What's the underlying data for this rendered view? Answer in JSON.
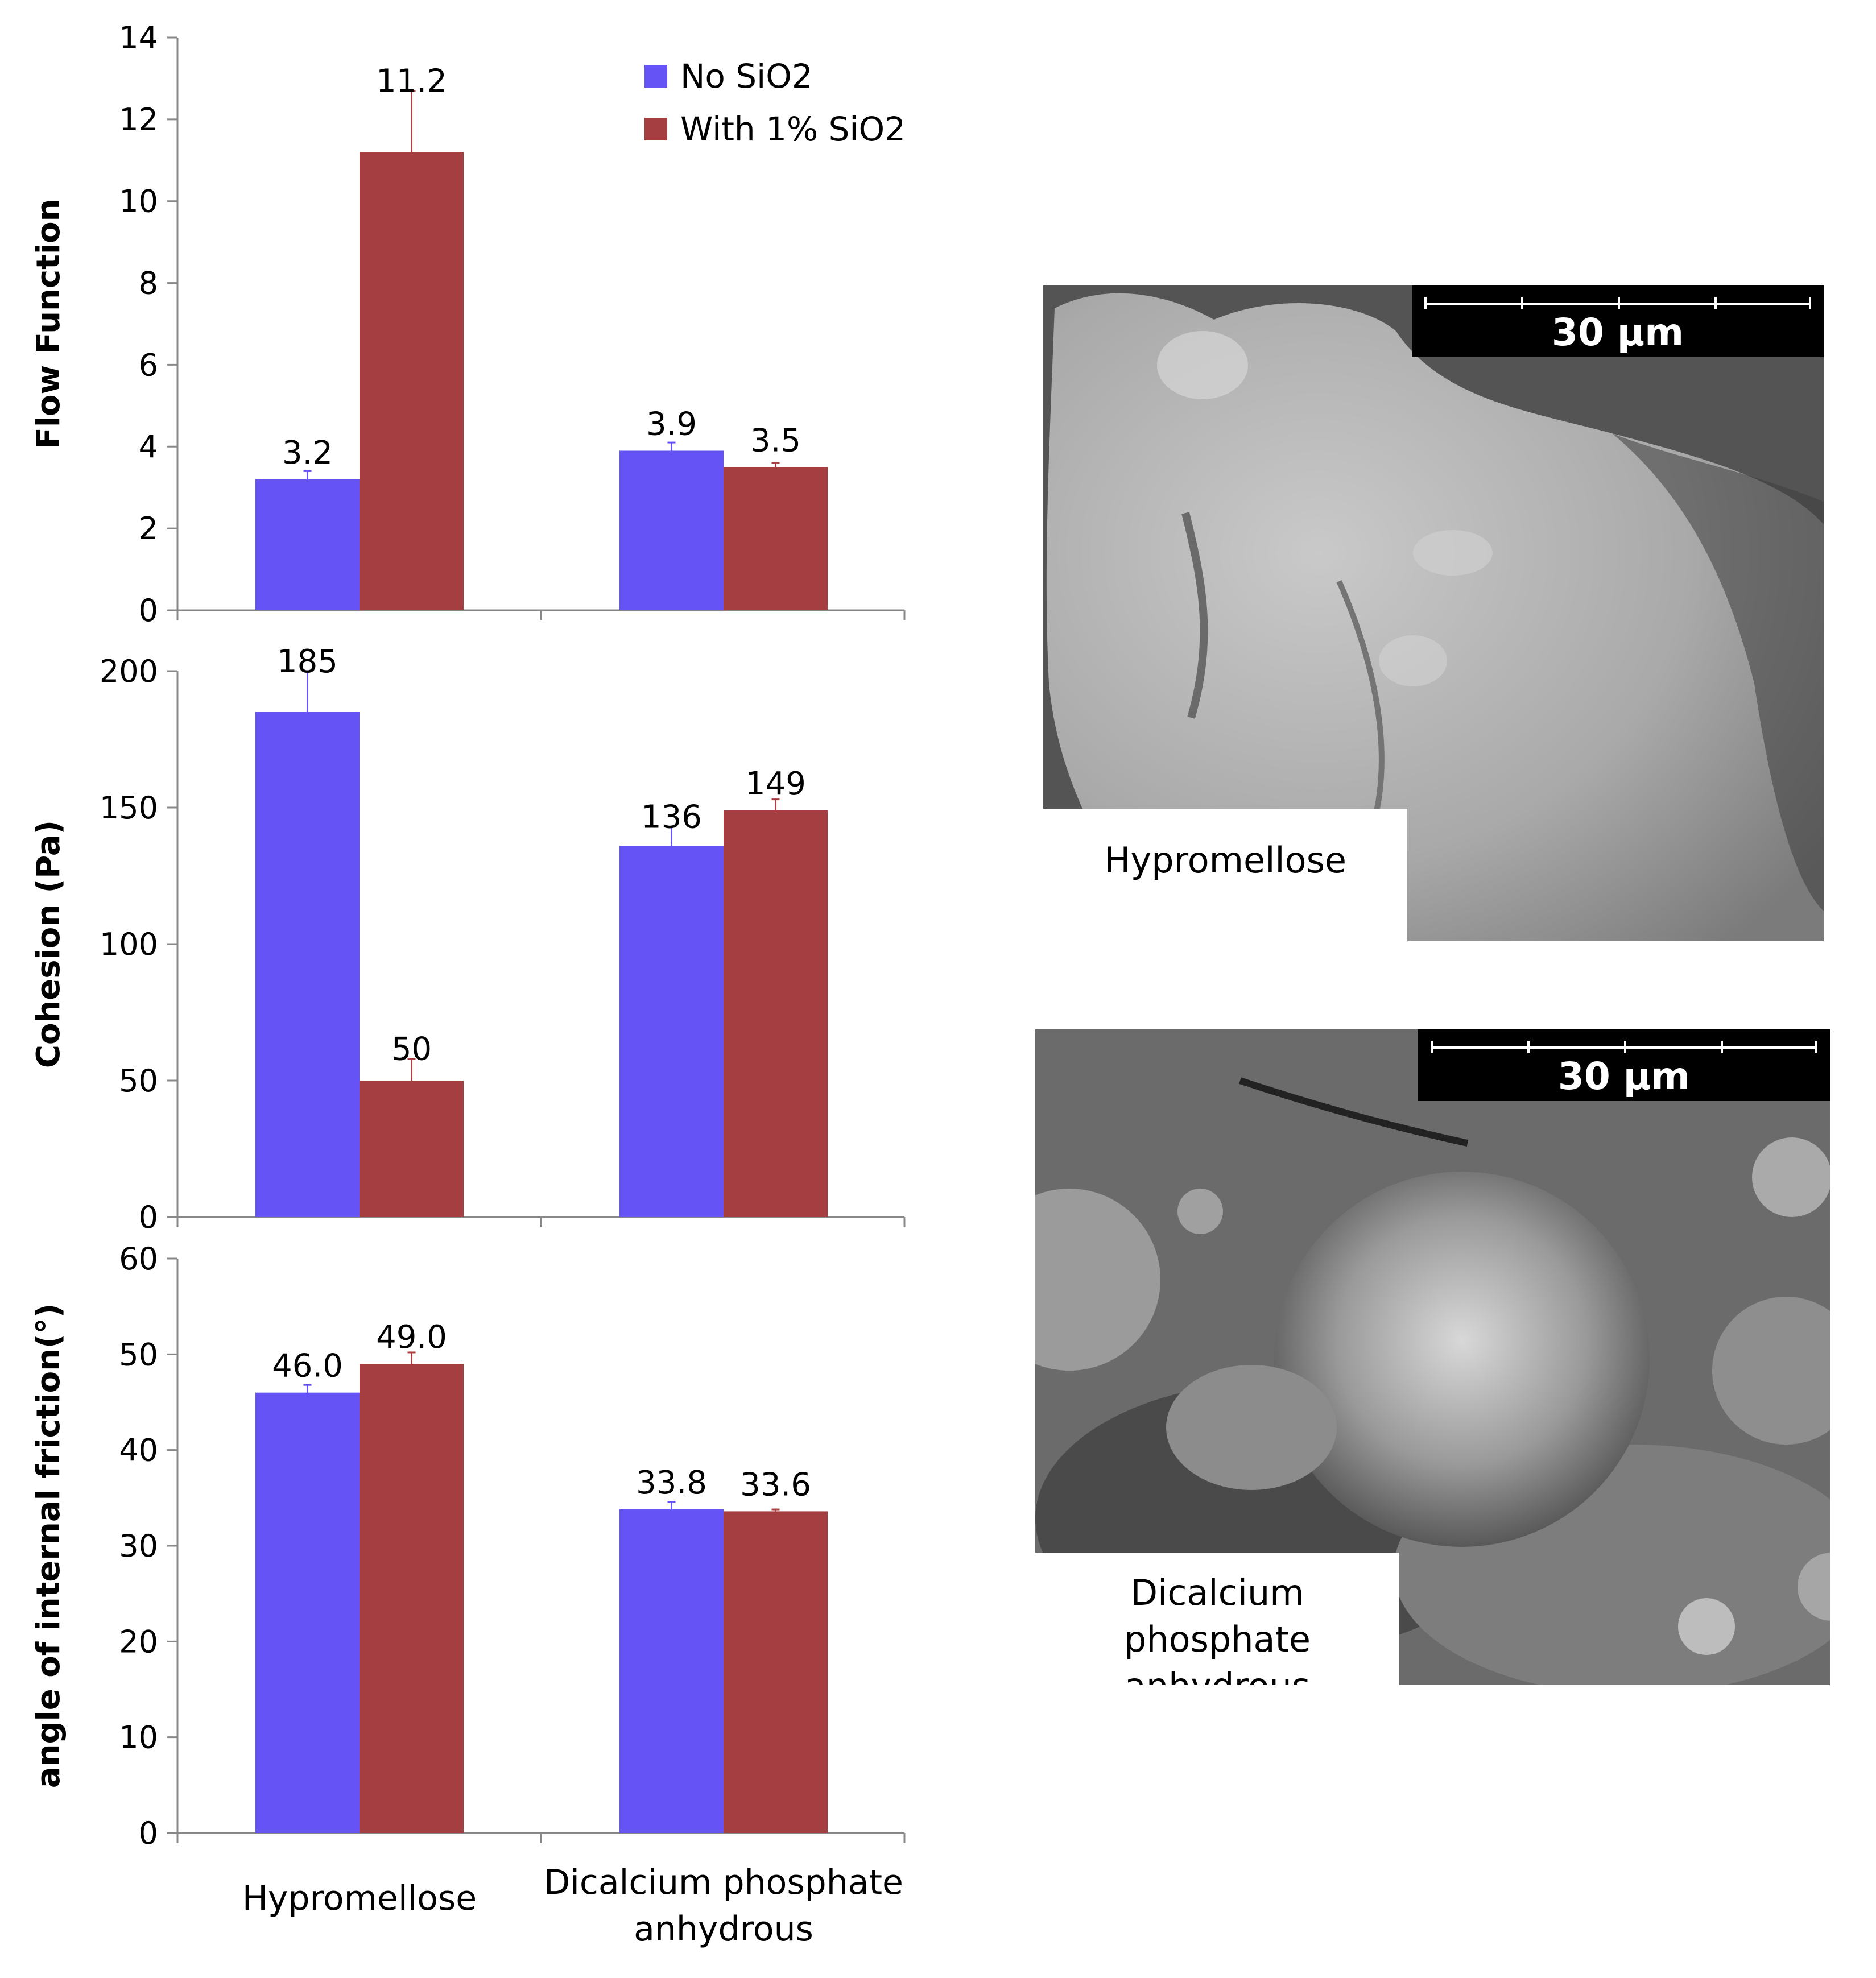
{
  "chart_data": [
    {
      "type": "bar",
      "categories": [
        "Hypromellose",
        "Dicalcium phosphate anhydrous"
      ],
      "series": [
        {
          "name": "No SiO2",
          "values": [
            3.2,
            3.9
          ],
          "errors": [
            0.2,
            0.2
          ],
          "color": "#6553f6"
        },
        {
          "name": "With 1% SiO2",
          "values": [
            11.2,
            3.5
          ],
          "errors": [
            1.5,
            0.1
          ],
          "color": "#a43e40"
        }
      ],
      "data_labels": [
        [
          "3.2",
          "3.9"
        ],
        [
          "11.2",
          "3.5"
        ]
      ],
      "ylabel": "Flow Function",
      "ylim": [
        0,
        14
      ],
      "yticks": [
        0,
        2,
        4,
        6,
        8,
        10,
        12,
        14
      ],
      "legend": "top-right",
      "grid": false
    },
    {
      "type": "bar",
      "categories": [
        "Hypromellose",
        "Dicalcium phosphate anhydrous"
      ],
      "series": [
        {
          "name": "No SiO2",
          "values": [
            185,
            136
          ],
          "errors": [
            15,
            7
          ],
          "color": "#6553f6"
        },
        {
          "name": "With 1% SiO2",
          "values": [
            50,
            149
          ],
          "errors": [
            8,
            4
          ],
          "color": "#a43e40"
        }
      ],
      "data_labels": [
        [
          "185",
          "136"
        ],
        [
          "50",
          "149"
        ]
      ],
      "ylabel": "Cohesion (Pa)",
      "ylim": [
        0,
        200
      ],
      "yticks": [
        0,
        50,
        100,
        150,
        200
      ],
      "grid": false
    },
    {
      "type": "bar",
      "categories": [
        "Hypromellose",
        "Dicalcium phosphate anhydrous"
      ],
      "series": [
        {
          "name": "No SiO2",
          "values": [
            46.0,
            33.8
          ],
          "errors": [
            0.8,
            0.8
          ],
          "color": "#6553f6"
        },
        {
          "name": "With 1% SiO2",
          "values": [
            49.0,
            33.6
          ],
          "errors": [
            1.2,
            0.2
          ],
          "color": "#a43e40"
        }
      ],
      "data_labels": [
        [
          "46.0",
          "33.8"
        ],
        [
          "49.0",
          "33.6"
        ]
      ],
      "ylabel": "angle of internal friction(°)",
      "ylim": [
        0,
        60
      ],
      "yticks": [
        0,
        10,
        20,
        30,
        40,
        50,
        60
      ],
      "category_labels": [
        [
          "Hypromellose"
        ],
        [
          "Dicalcium phosphate",
          "anhydrous"
        ]
      ],
      "grid": false
    }
  ],
  "micrographs": [
    {
      "caption": [
        "Hypromellose"
      ],
      "scale_label": "30 µm"
    },
    {
      "caption": [
        "Dicalcium phosphate",
        "anhydrous"
      ],
      "scale_label": "30 µm"
    }
  ]
}
